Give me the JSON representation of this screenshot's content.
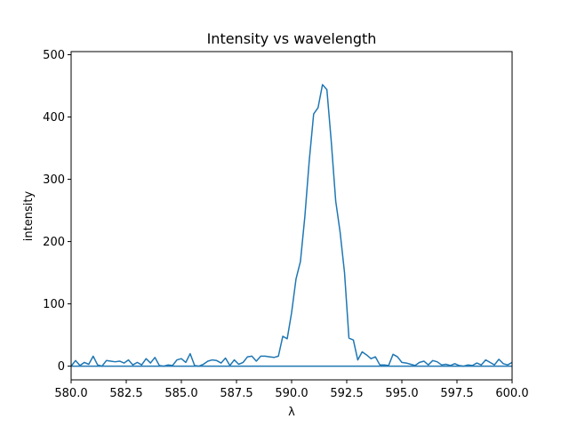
{
  "chart_data": {
    "type": "line",
    "title": "Intensity vs wavelength",
    "xlabel": "λ",
    "ylabel": "intensity",
    "xlim": [
      580.0,
      600.0
    ],
    "ylim": [
      -22,
      505
    ],
    "xticks": [
      580.0,
      582.5,
      585.0,
      587.5,
      590.0,
      592.5,
      595.0,
      597.5,
      600.0
    ],
    "xtick_labels": [
      "580.0",
      "582.5",
      "585.0",
      "587.5",
      "590.0",
      "592.5",
      "595.0",
      "597.5",
      "600.0"
    ],
    "yticks": [
      0,
      100,
      200,
      300,
      400,
      500
    ],
    "ytick_labels": [
      "0",
      "100",
      "200",
      "300",
      "400",
      "500"
    ],
    "grid": false,
    "line_color": "#1f77b4",
    "series": [
      {
        "x": [
          580.0,
          580.2,
          580.4,
          580.6,
          580.8,
          581.0,
          581.2,
          581.4,
          581.6,
          581.8,
          582.0,
          582.2,
          582.4,
          582.6,
          582.8,
          583.0,
          583.2,
          583.4,
          583.6,
          583.8,
          584.0,
          584.2,
          584.4,
          584.6,
          584.8,
          585.0,
          585.2,
          585.4,
          585.6,
          585.8,
          586.0,
          586.2,
          586.4,
          586.6,
          586.8,
          587.0,
          587.2,
          587.4,
          587.6,
          587.8,
          588.0,
          588.2,
          588.4,
          588.6,
          588.8,
          589.0,
          589.2,
          589.4,
          589.6,
          589.8,
          590.0,
          590.2,
          590.4,
          590.6,
          590.8,
          591.0,
          591.2,
          591.4,
          591.6,
          591.8,
          592.0,
          592.2,
          592.4,
          592.6,
          592.8,
          593.0,
          593.2,
          593.4,
          593.6,
          593.8,
          594.0,
          594.2,
          594.4,
          594.6,
          594.8,
          595.0,
          595.2,
          595.4,
          595.6,
          595.8,
          596.0,
          596.2,
          596.4,
          596.6,
          596.8,
          597.0,
          597.2,
          597.4,
          597.6,
          597.8,
          598.0,
          598.2,
          598.4,
          598.6,
          598.8,
          599.0,
          599.2,
          599.4,
          599.6,
          599.8,
          600.0
        ],
        "values": [
          0,
          9,
          1,
          6,
          3,
          16,
          2,
          0,
          9,
          8,
          7,
          8,
          5,
          10,
          2,
          6,
          2,
          12,
          5,
          14,
          1,
          0,
          2,
          1,
          10,
          12,
          6,
          20,
          1,
          0,
          3,
          8,
          10,
          9,
          5,
          13,
          1,
          10,
          3,
          6,
          15,
          16,
          8,
          16,
          16,
          15,
          14,
          16,
          48,
          44,
          86,
          140,
          168,
          240,
          330,
          405,
          415,
          452,
          444,
          360,
          265,
          215,
          150,
          45,
          42,
          10,
          23,
          18,
          12,
          15,
          2,
          2,
          1,
          19,
          15,
          6,
          5,
          3,
          1,
          6,
          8,
          2,
          9,
          7,
          2,
          3,
          1,
          4,
          1,
          0,
          2,
          1,
          5,
          2,
          10,
          6,
          2,
          11,
          4,
          2,
          6
        ]
      }
    ],
    "baseline": 0
  }
}
